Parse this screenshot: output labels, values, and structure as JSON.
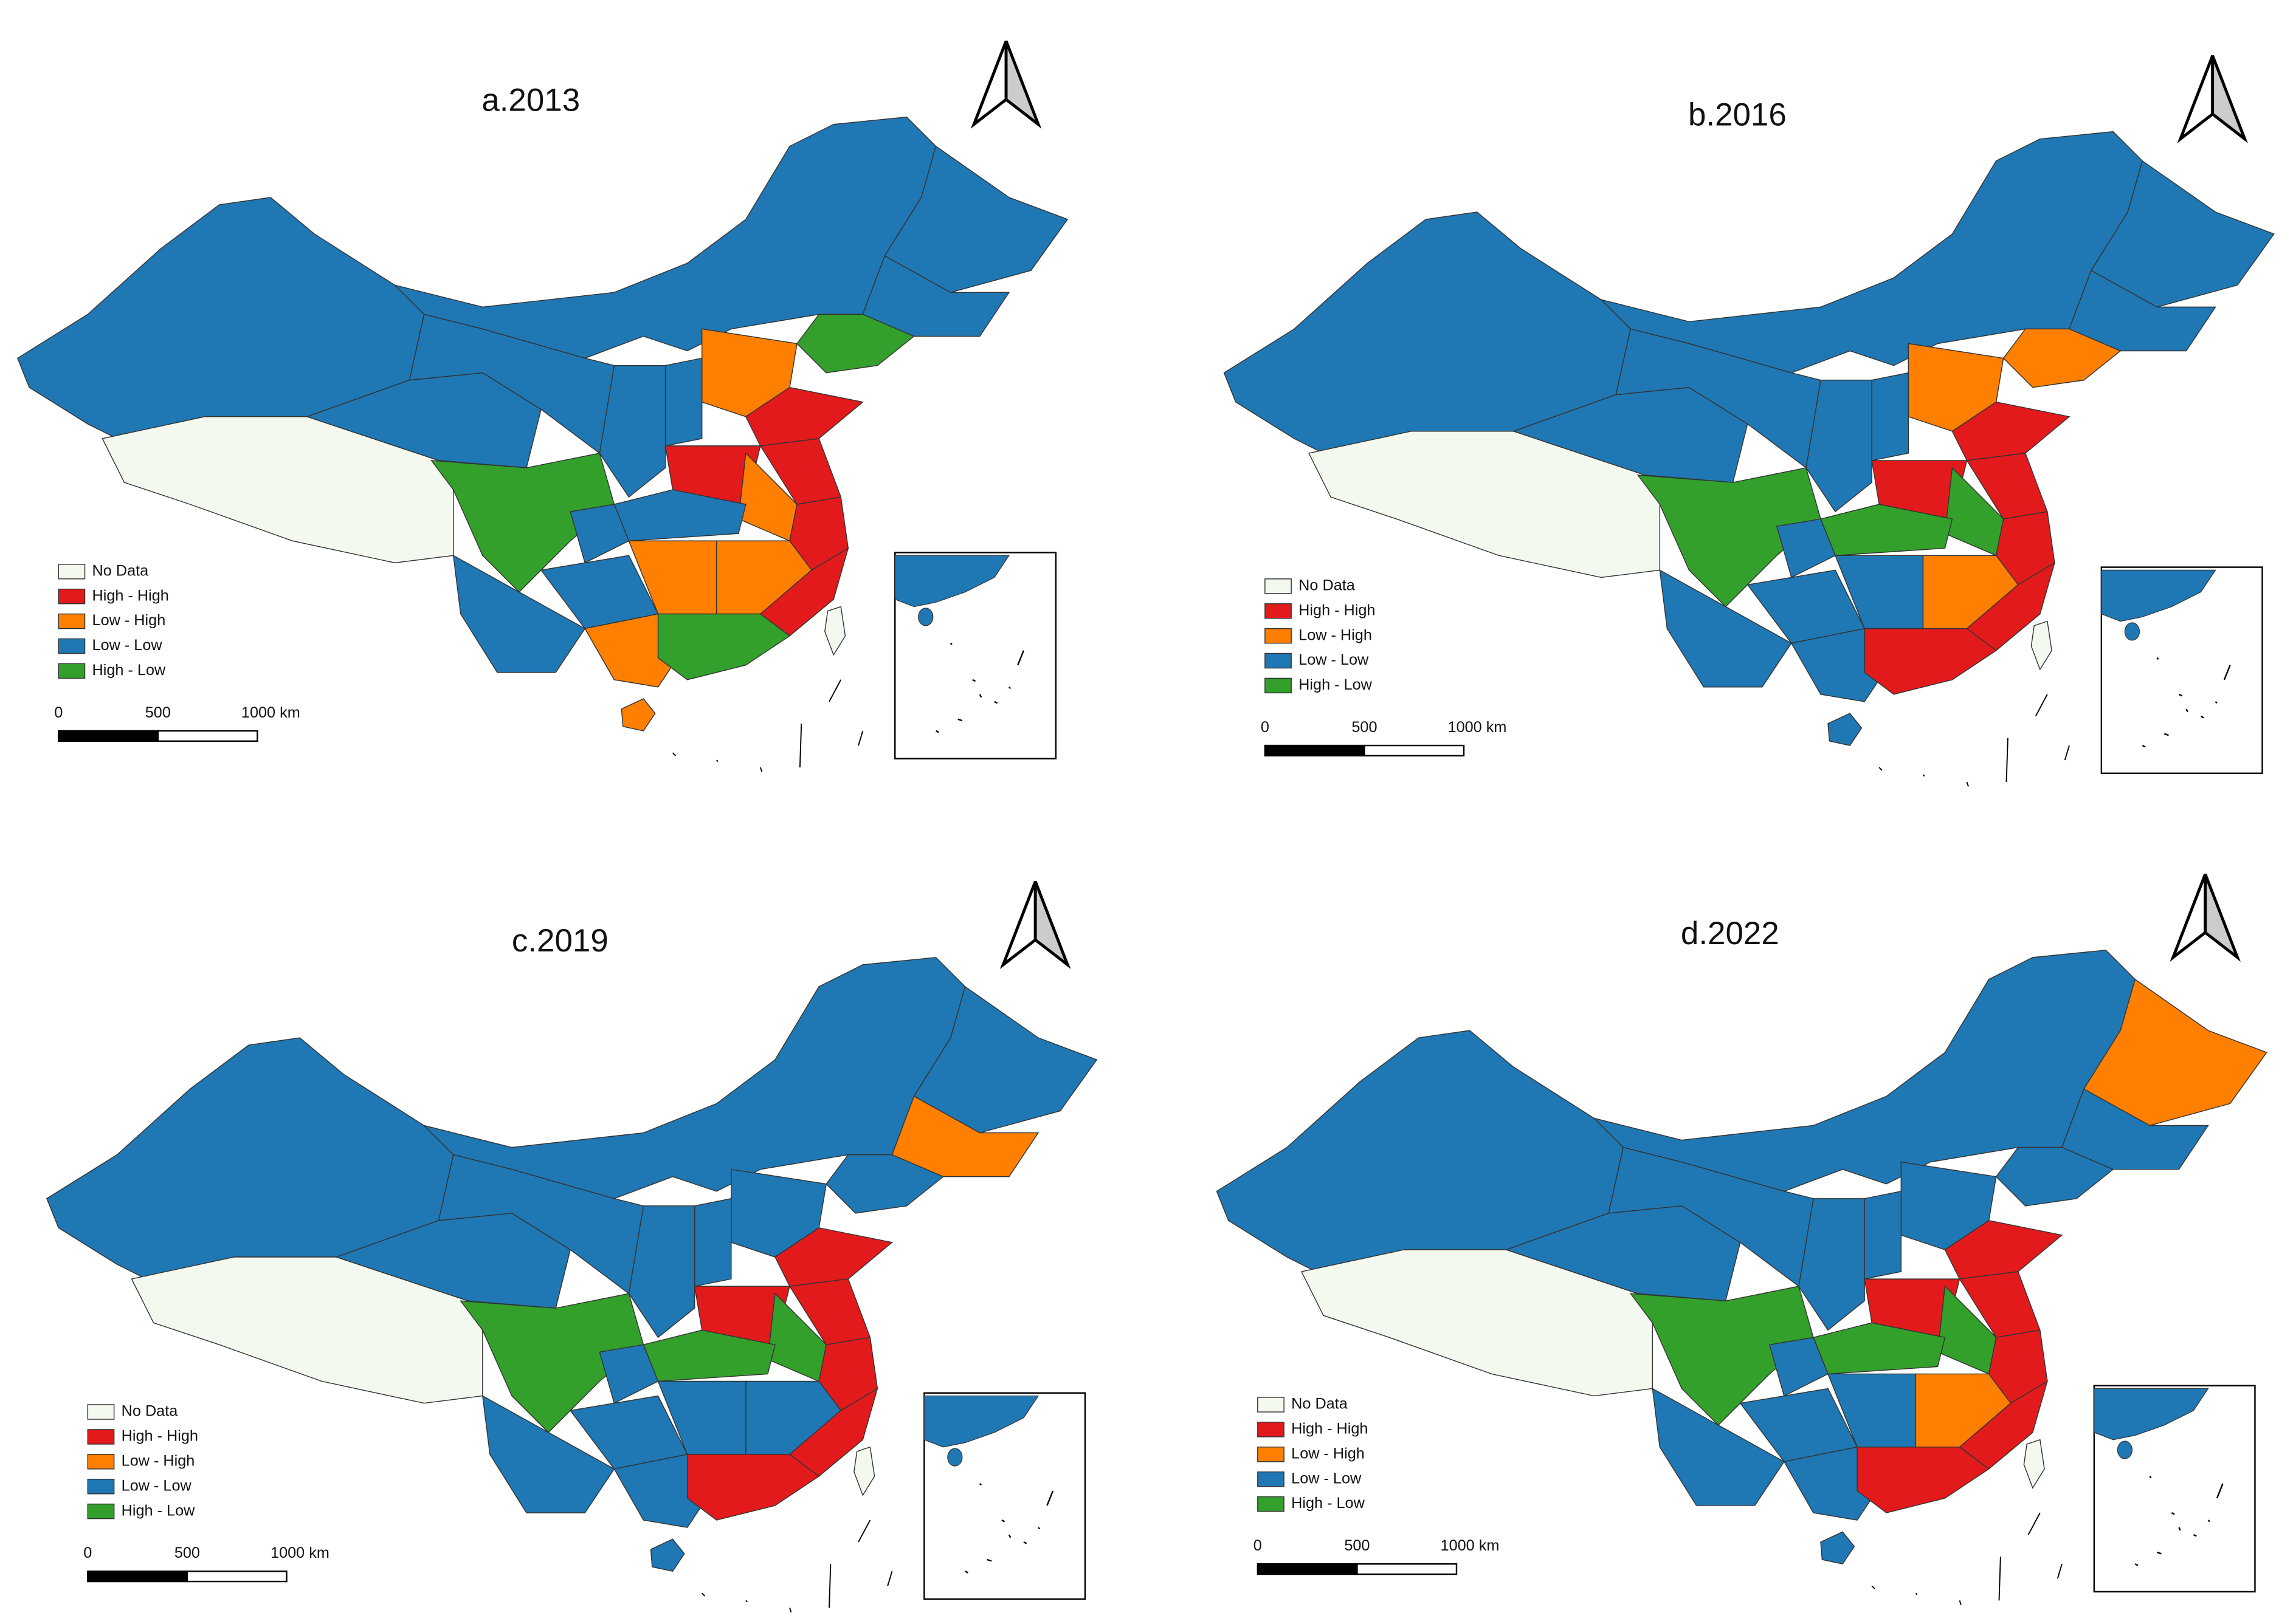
{
  "panels": [
    {
      "title": "a.2013",
      "legend": [
        {
          "label": "No Data",
          "color": "#f4f9ef"
        },
        {
          "label": "High - High",
          "color": "#e31a1c"
        },
        {
          "label": "Low - High",
          "color": "#ff7f00"
        },
        {
          "label": "Low - Low",
          "color": "#1f78b4"
        },
        {
          "label": "High - Low",
          "color": "#33a02c"
        }
      ],
      "scale": [
        "0",
        "500",
        "1000 km"
      ]
    },
    {
      "title": "b.2016",
      "legend": [
        {
          "label": "No Data",
          "color": "#f4f9ef"
        },
        {
          "label": "High - High",
          "color": "#e31a1c"
        },
        {
          "label": "Low - High",
          "color": "#ff7f00"
        },
        {
          "label": "Low - Low",
          "color": "#1f78b4"
        },
        {
          "label": "High - Low",
          "color": "#33a02c"
        }
      ],
      "scale": [
        "0",
        "500",
        "1000 km"
      ]
    },
    {
      "title": "c.2019",
      "legend": [
        {
          "label": "No Data",
          "color": "#f4f9ef"
        },
        {
          "label": "High - High",
          "color": "#e31a1c"
        },
        {
          "label": "Low - High",
          "color": "#ff7f00"
        },
        {
          "label": "Low - Low",
          "color": "#1f78b4"
        },
        {
          "label": "High - Low",
          "color": "#33a02c"
        }
      ],
      "scale": [
        "0",
        "500",
        "1000 km"
      ]
    },
    {
      "title": "d.2022",
      "legend": [
        {
          "label": "No Data",
          "color": "#f4f9ef"
        },
        {
          "label": "High - High",
          "color": "#e31a1c"
        },
        {
          "label": "Low - High",
          "color": "#ff7f00"
        },
        {
          "label": "Low - Low",
          "color": "#1f78b4"
        },
        {
          "label": "High - Low",
          "color": "#33a02c"
        }
      ],
      "scale": [
        "0",
        "500",
        "1000 km"
      ]
    }
  ]
}
